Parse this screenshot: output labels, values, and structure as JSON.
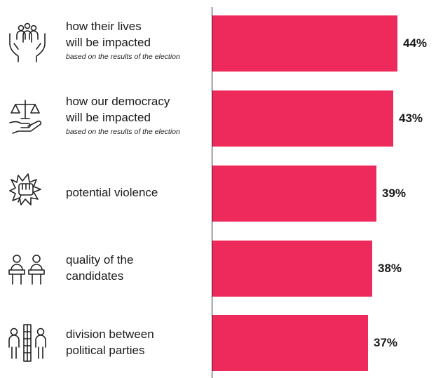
{
  "chart_data": {
    "type": "bar",
    "orientation": "horizontal",
    "categories": [
      {
        "label": "how their lives\nwill be impacted",
        "sub": "based on the results of the election",
        "icon": "community-hands-icon"
      },
      {
        "label": "how our democracy\nwill be impacted",
        "sub": "based on the results of the election",
        "icon": "scales-hand-icon"
      },
      {
        "label": "potential violence",
        "sub": "",
        "icon": "fist-impact-icon"
      },
      {
        "label": "quality of the\ncandidates",
        "sub": "",
        "icon": "podium-candidates-icon"
      },
      {
        "label": "division between\npolitical parties",
        "sub": "",
        "icon": "divided-people-icon"
      }
    ],
    "values": [
      44,
      43,
      39,
      38,
      37
    ],
    "value_labels": [
      "44%",
      "43%",
      "39%",
      "38%",
      "37%"
    ],
    "bar_color": "#ee2a5c",
    "xlim": [
      0,
      53
    ],
    "grid": false
  }
}
